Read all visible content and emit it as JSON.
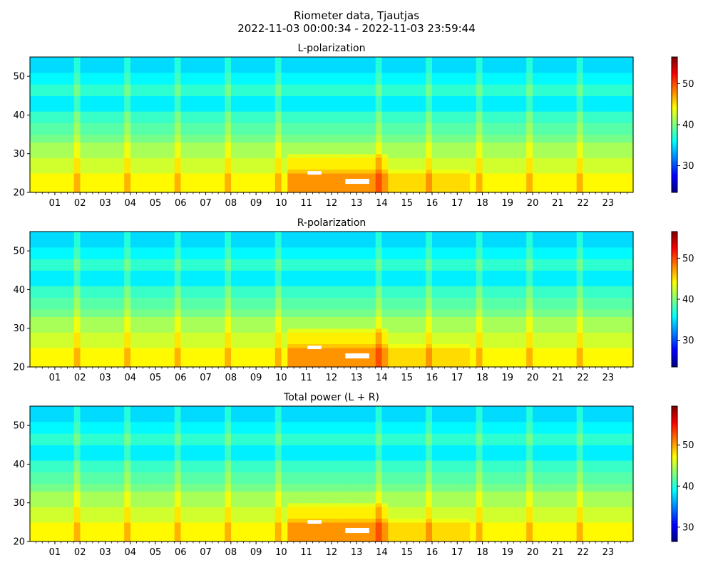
{
  "figure": {
    "title_line1": "Riometer data, Tjautjas",
    "title_line2": "2022-11-03 00:00:34 - 2022-11-03 23:59:44"
  },
  "chart_data": [
    {
      "type": "heatmap",
      "title": "L-polarization",
      "colormap": "jet",
      "xrange": [
        "2022-11-03 00:00:34",
        "2022-11-03 23:59:44"
      ],
      "x_tick_labels": [
        "01",
        "02",
        "03",
        "04",
        "05",
        "06",
        "07",
        "08",
        "09",
        "10",
        "11",
        "12",
        "13",
        "14",
        "15",
        "16",
        "17",
        "18",
        "19",
        "20",
        "21",
        "22",
        "23"
      ],
      "ylim": [
        20,
        55
      ],
      "y_ticks": [
        20,
        30,
        40,
        50
      ],
      "colorbar": {
        "range": [
          23.5,
          56.5
        ],
        "ticks": [
          30,
          40,
          50
        ]
      }
    },
    {
      "type": "heatmap",
      "title": "R-polarization",
      "colormap": "jet",
      "xrange": [
        "2022-11-03 00:00:34",
        "2022-11-03 23:59:44"
      ],
      "x_tick_labels": [
        "01",
        "02",
        "03",
        "04",
        "05",
        "06",
        "07",
        "08",
        "09",
        "10",
        "11",
        "12",
        "13",
        "14",
        "15",
        "16",
        "17",
        "18",
        "19",
        "20",
        "21",
        "22",
        "23"
      ],
      "ylim": [
        20,
        55
      ],
      "y_ticks": [
        20,
        30,
        40,
        50
      ],
      "colorbar": {
        "range": [
          23.5,
          56.5
        ],
        "ticks": [
          30,
          40,
          50
        ]
      }
    },
    {
      "type": "heatmap",
      "title": "Total power (L + R)",
      "colormap": "jet",
      "xrange": [
        "2022-11-03 00:00:34",
        "2022-11-03 23:59:44"
      ],
      "x_tick_labels": [
        "01",
        "02",
        "03",
        "04",
        "05",
        "06",
        "07",
        "08",
        "09",
        "10",
        "11",
        "12",
        "13",
        "14",
        "15",
        "16",
        "17",
        "18",
        "19",
        "20",
        "21",
        "22",
        "23"
      ],
      "ylim": [
        20,
        55
      ],
      "y_ticks": [
        20,
        30,
        40,
        50
      ],
      "colorbar": {
        "range": [
          26.5,
          59.5
        ],
        "ticks": [
          30,
          40,
          50
        ]
      }
    }
  ]
}
